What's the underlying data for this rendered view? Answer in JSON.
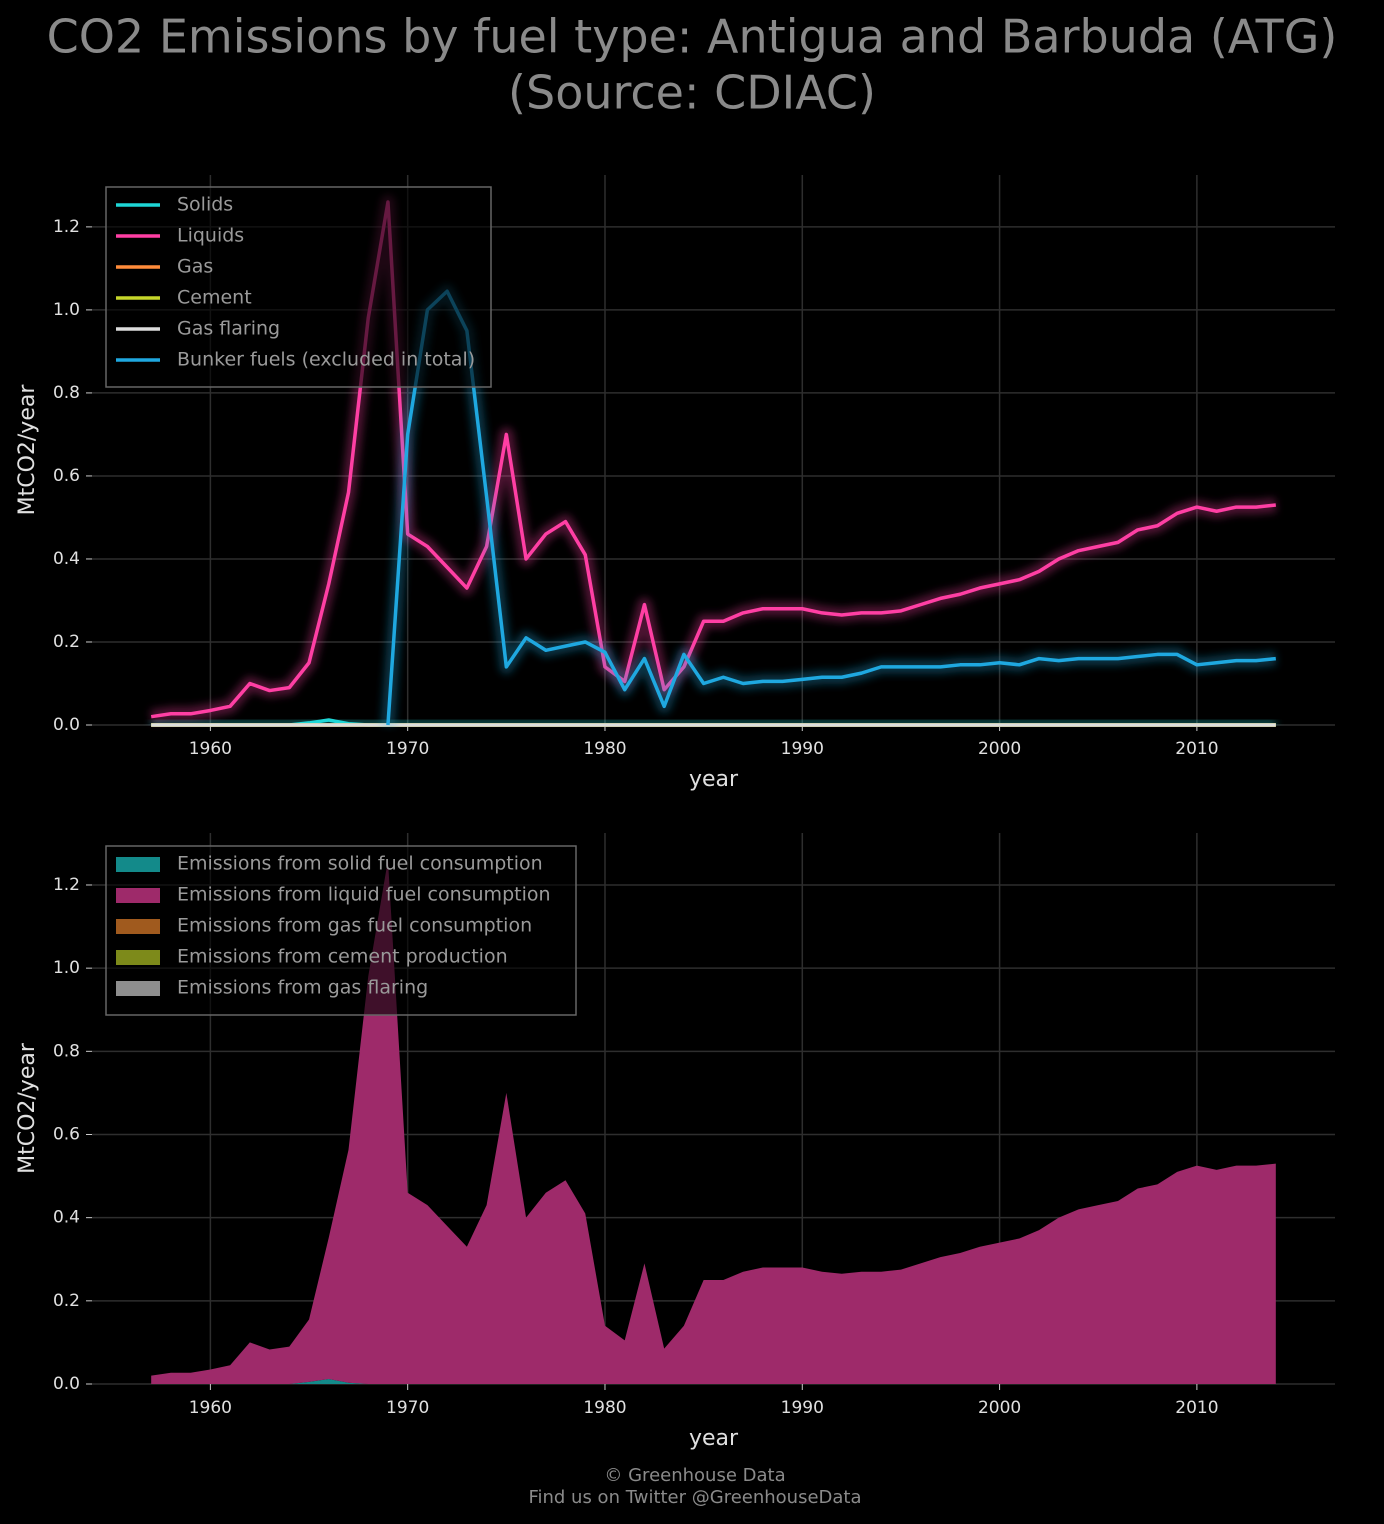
{
  "title": [
    "CO2 Emissions by fuel type: Antigua and Barbuda (ATG)",
    "(Source: CDIAC)"
  ],
  "footer": [
    "© Greenhouse Data",
    "Find us on Twitter @GreenhouseData"
  ],
  "chart_data": [
    {
      "type": "line",
      "xlabel": "year",
      "ylabel": "MtCO2/year",
      "legend": "upper left",
      "grid": true,
      "xlim": [
        1954,
        2017
      ],
      "ylim": [
        0,
        1.325
      ],
      "xticks": [
        1960,
        1970,
        1980,
        1990,
        2000,
        2010
      ],
      "yticks": [
        {
          "value": 0,
          "label": "0.0"
        },
        0.2,
        0.4,
        0.6,
        0.8,
        {
          "value": 1,
          "label": "1.0"
        },
        1.2
      ],
      "x": [
        1957,
        1958,
        1959,
        1960,
        1961,
        1962,
        1963,
        1964,
        1965,
        1966,
        1967,
        1968,
        1969,
        1970,
        1971,
        1972,
        1973,
        1974,
        1975,
        1976,
        1977,
        1978,
        1979,
        1980,
        1981,
        1982,
        1983,
        1984,
        1985,
        1986,
        1987,
        1988,
        1989,
        1990,
        1991,
        1992,
        1993,
        1994,
        1995,
        1996,
        1997,
        1998,
        1999,
        2000,
        2001,
        2002,
        2003,
        2004,
        2005,
        2006,
        2007,
        2008,
        2009,
        2010,
        2011,
        2012,
        2013,
        2014
      ],
      "series": [
        {
          "name": "Solids",
          "color": "#1ed6d6",
          "values": [
            0,
            0,
            0,
            0,
            0,
            0,
            0,
            0,
            0.005,
            0.012,
            0.003,
            0,
            0,
            0,
            0,
            0,
            0,
            0,
            0,
            0,
            0,
            0,
            0,
            0,
            0,
            0,
            0,
            0,
            0,
            0,
            0,
            0,
            0,
            0,
            0,
            0,
            0,
            0,
            0,
            0,
            0,
            0,
            0,
            0,
            0,
            0,
            0,
            0,
            0,
            0,
            0,
            0,
            0,
            0,
            0,
            0,
            0,
            0
          ]
        },
        {
          "name": "Liquids",
          "color": "#ff3fa4",
          "values": [
            0.02,
            0.027,
            0.027,
            0.035,
            0.045,
            0.1,
            0.083,
            0.09,
            0.15,
            0.34,
            0.56,
            0.98,
            1.26,
            0.46,
            0.43,
            0.38,
            0.33,
            0.43,
            0.7,
            0.4,
            0.46,
            0.49,
            0.41,
            0.14,
            0.105,
            0.29,
            0.085,
            0.14,
            0.25,
            0.25,
            0.27,
            0.28,
            0.28,
            0.28,
            0.27,
            0.265,
            0.27,
            0.27,
            0.275,
            0.29,
            0.305,
            0.315,
            0.33,
            0.34,
            0.35,
            0.37,
            0.4,
            0.42,
            0.43,
            0.44,
            0.47,
            0.48,
            0.51,
            0.525,
            0.515,
            0.525,
            0.525,
            0.53
          ]
        },
        {
          "name": "Gas",
          "color": "#ff8c3a",
          "values": [
            0,
            0,
            0,
            0,
            0,
            0,
            0,
            0,
            0,
            0,
            0,
            0,
            0,
            0,
            0,
            0,
            0,
            0,
            0,
            0,
            0,
            0,
            0,
            0,
            0,
            0,
            0,
            0,
            0,
            0,
            0,
            0,
            0,
            0,
            0,
            0,
            0,
            0,
            0,
            0,
            0,
            0,
            0,
            0,
            0,
            0,
            0,
            0,
            0,
            0,
            0,
            0,
            0,
            0,
            0,
            0,
            0,
            0
          ]
        },
        {
          "name": "Cement",
          "color": "#c6d62a",
          "values": [
            0,
            0,
            0,
            0,
            0,
            0,
            0,
            0,
            0,
            0,
            0,
            0,
            0,
            0,
            0,
            0,
            0,
            0,
            0,
            0,
            0,
            0,
            0,
            0,
            0,
            0,
            0,
            0,
            0,
            0,
            0,
            0,
            0,
            0,
            0,
            0,
            0,
            0,
            0,
            0,
            0,
            0,
            0,
            0,
            0,
            0,
            0,
            0,
            0,
            0,
            0,
            0,
            0,
            0,
            0,
            0,
            0,
            0
          ]
        },
        {
          "name": "Gas flaring",
          "color": "#dddddd",
          "values": [
            0,
            0,
            0,
            0,
            0,
            0,
            0,
            0,
            0,
            0,
            0,
            0,
            0,
            0,
            0,
            0,
            0,
            0,
            0,
            0,
            0,
            0,
            0,
            0,
            0,
            0,
            0,
            0,
            0,
            0,
            0,
            0,
            0,
            0,
            0,
            0,
            0,
            0,
            0,
            0,
            0,
            0,
            0,
            0,
            0,
            0,
            0,
            0,
            0,
            0,
            0,
            0,
            0,
            0,
            0,
            0,
            0,
            0
          ]
        },
        {
          "name": "Bunker fuels (excluded in total)",
          "color": "#1fa8e0",
          "values": [
            null,
            null,
            null,
            null,
            null,
            null,
            null,
            null,
            null,
            null,
            null,
            null,
            0,
            0.7,
            1.0,
            1.045,
            0.95,
            0.55,
            0.14,
            0.21,
            0.18,
            0.19,
            0.2,
            0.175,
            0.085,
            0.16,
            0.045,
            0.17,
            0.1,
            0.115,
            0.1,
            0.105,
            0.105,
            0.11,
            0.115,
            0.115,
            0.125,
            0.14,
            0.14,
            0.14,
            0.14,
            0.145,
            0.145,
            0.15,
            0.145,
            0.16,
            0.155,
            0.16,
            0.16,
            0.16,
            0.165,
            0.17,
            0.17,
            0.145,
            0.15,
            0.155,
            0.155,
            0.16
          ]
        }
      ]
    },
    {
      "type": "stacked_area",
      "xlabel": "year",
      "ylabel": "MtCO2/year",
      "legend": "upper left",
      "grid": true,
      "xlim": [
        1954,
        2017
      ],
      "ylim": [
        0,
        1.325
      ],
      "xticks": [
        1960,
        1970,
        1980,
        1990,
        2000,
        2010
      ],
      "yticks": [
        {
          "value": 0,
          "label": "0.0"
        },
        0.2,
        0.4,
        0.6,
        0.8,
        {
          "value": 1,
          "label": "1.0"
        },
        1.2
      ],
      "x": [
        1957,
        1958,
        1959,
        1960,
        1961,
        1962,
        1963,
        1964,
        1965,
        1966,
        1967,
        1968,
        1969,
        1970,
        1971,
        1972,
        1973,
        1974,
        1975,
        1976,
        1977,
        1978,
        1979,
        1980,
        1981,
        1982,
        1983,
        1984,
        1985,
        1986,
        1987,
        1988,
        1989,
        1990,
        1991,
        1992,
        1993,
        1994,
        1995,
        1996,
        1997,
        1998,
        1999,
        2000,
        2001,
        2002,
        2003,
        2004,
        2005,
        2006,
        2007,
        2008,
        2009,
        2010,
        2011,
        2012,
        2013,
        2014
      ],
      "series": [
        {
          "name": "Emissions from solid fuel consumption",
          "color": "#138a8a",
          "values": [
            0,
            0,
            0,
            0,
            0,
            0,
            0,
            0,
            0.005,
            0.012,
            0.003,
            0,
            0,
            0,
            0,
            0,
            0,
            0,
            0,
            0,
            0,
            0,
            0,
            0,
            0,
            0,
            0,
            0,
            0,
            0,
            0,
            0,
            0,
            0,
            0,
            0,
            0,
            0,
            0,
            0,
            0,
            0,
            0,
            0,
            0,
            0,
            0,
            0,
            0,
            0,
            0,
            0,
            0,
            0,
            0,
            0,
            0,
            0
          ]
        },
        {
          "name": "Emissions from liquid fuel consumption",
          "color": "#9e2a6a",
          "values": [
            0.02,
            0.027,
            0.027,
            0.035,
            0.045,
            0.1,
            0.083,
            0.09,
            0.15,
            0.34,
            0.56,
            0.98,
            1.26,
            0.46,
            0.43,
            0.38,
            0.33,
            0.43,
            0.7,
            0.4,
            0.46,
            0.49,
            0.41,
            0.14,
            0.105,
            0.29,
            0.085,
            0.14,
            0.25,
            0.25,
            0.27,
            0.28,
            0.28,
            0.28,
            0.27,
            0.265,
            0.27,
            0.27,
            0.275,
            0.29,
            0.305,
            0.315,
            0.33,
            0.34,
            0.35,
            0.37,
            0.4,
            0.42,
            0.43,
            0.44,
            0.47,
            0.48,
            0.51,
            0.525,
            0.515,
            0.525,
            0.525,
            0.53
          ]
        },
        {
          "name": "Emissions from gas fuel consumption",
          "color": "#a05a1e",
          "values": [
            0,
            0,
            0,
            0,
            0,
            0,
            0,
            0,
            0,
            0,
            0,
            0,
            0,
            0,
            0,
            0,
            0,
            0,
            0,
            0,
            0,
            0,
            0,
            0,
            0,
            0,
            0,
            0,
            0,
            0,
            0,
            0,
            0,
            0,
            0,
            0,
            0,
            0,
            0,
            0,
            0,
            0,
            0,
            0,
            0,
            0,
            0,
            0,
            0,
            0,
            0,
            0,
            0,
            0,
            0,
            0,
            0,
            0
          ]
        },
        {
          "name": "Emissions from cement production",
          "color": "#7d8a1a",
          "values": [
            0,
            0,
            0,
            0,
            0,
            0,
            0,
            0,
            0,
            0,
            0,
            0,
            0,
            0,
            0,
            0,
            0,
            0,
            0,
            0,
            0,
            0,
            0,
            0,
            0,
            0,
            0,
            0,
            0,
            0,
            0,
            0,
            0,
            0,
            0,
            0,
            0,
            0,
            0,
            0,
            0,
            0,
            0,
            0,
            0,
            0,
            0,
            0,
            0,
            0,
            0,
            0,
            0,
            0,
            0,
            0,
            0,
            0
          ]
        },
        {
          "name": "Emissions from gas flaring",
          "color": "#8e8e8e",
          "values": [
            0,
            0,
            0,
            0,
            0,
            0,
            0,
            0,
            0,
            0,
            0,
            0,
            0,
            0,
            0,
            0,
            0,
            0,
            0,
            0,
            0,
            0,
            0,
            0,
            0,
            0,
            0,
            0,
            0,
            0,
            0,
            0,
            0,
            0,
            0,
            0,
            0,
            0,
            0,
            0,
            0,
            0,
            0,
            0,
            0,
            0,
            0,
            0,
            0,
            0,
            0,
            0,
            0,
            0,
            0,
            0,
            0,
            0
          ]
        }
      ]
    }
  ]
}
